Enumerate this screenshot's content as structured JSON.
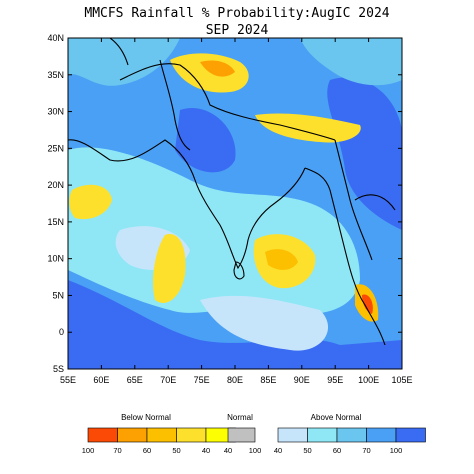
{
  "title": {
    "line1": "MMCFS Rainfall % Probability:AugIC 2024",
    "line2": "SEP 2024"
  },
  "map": {
    "lat_labels": [
      "40N",
      "35N",
      "30N",
      "25N",
      "20N",
      "15N",
      "10N",
      "5N",
      "0",
      "5S"
    ],
    "lon_labels": [
      "55E",
      "60E",
      "65E",
      "70E",
      "75E",
      "80E",
      "85E",
      "90E",
      "95E",
      "100E",
      "105E"
    ],
    "lat_range": [
      -5,
      40
    ],
    "lon_range": [
      55,
      105
    ]
  },
  "legend": {
    "below_normal": {
      "label": "Below Normal",
      "ticks": [
        "100",
        "70",
        "60",
        "50",
        "40"
      ],
      "colors": [
        "#fb4a05",
        "#fca101",
        "#fdc000",
        "#fde02c",
        "#fefe03"
      ]
    },
    "normal": {
      "label": "Normal",
      "ticks": [
        "40",
        "100"
      ],
      "colors": [
        "#c0c0c0"
      ]
    },
    "above_normal": {
      "label": "Above Normal",
      "ticks": [
        "40",
        "50",
        "60",
        "70",
        "100"
      ],
      "colors": [
        "#c6e5fb",
        "#8fe7f5",
        "#6ac6ef",
        "#4aa0f4",
        "#3a6cf3"
      ]
    }
  }
}
